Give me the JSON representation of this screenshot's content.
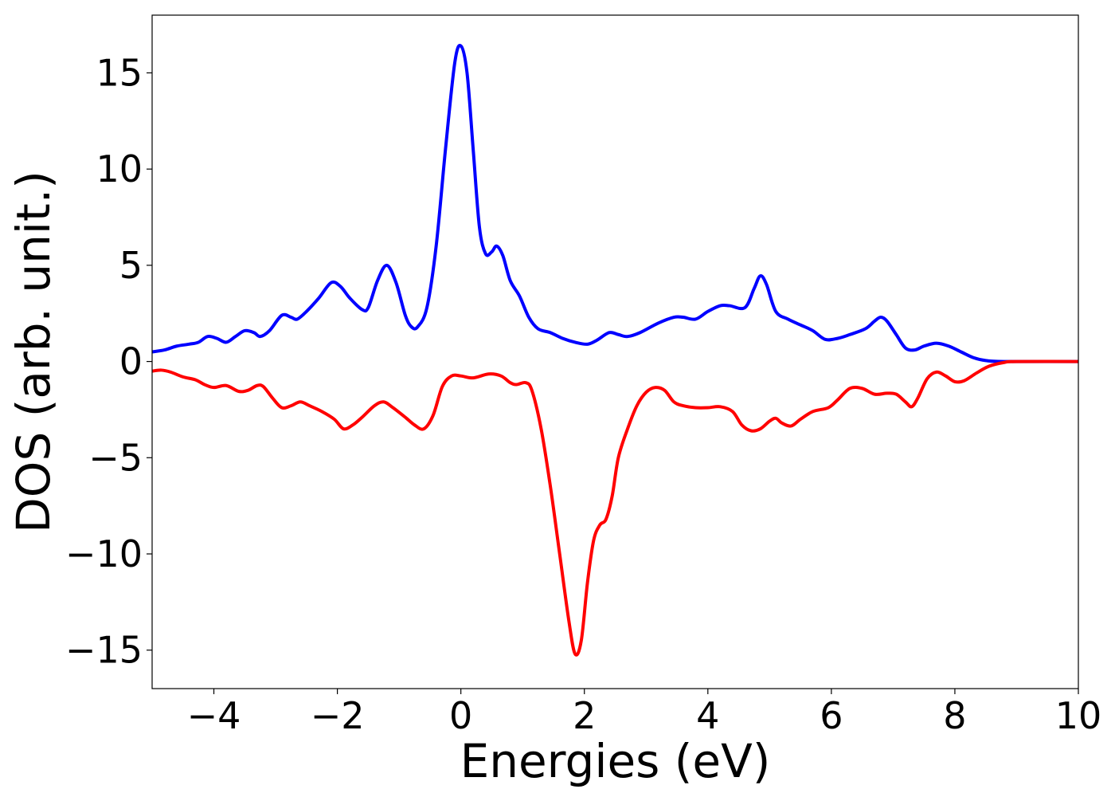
{
  "chart_data": {
    "type": "line",
    "title": "",
    "xlabel": "Energies (eV)",
    "ylabel": "DOS (arb. unit.)",
    "xlim": [
      -5,
      10
    ],
    "ylim": [
      -17,
      18
    ],
    "grid": false,
    "legend": "none",
    "x_ticks": [
      -4,
      -2,
      0,
      2,
      4,
      6,
      8,
      10
    ],
    "x_tick_labels": [
      "−4",
      "−2",
      "0",
      "2",
      "4",
      "6",
      "8",
      "10"
    ],
    "y_ticks": [
      15,
      10,
      5,
      0,
      -5,
      -10,
      -15
    ],
    "y_tick_labels": [
      "15",
      "10",
      "5",
      "0",
      "−5",
      "−10",
      "−15"
    ],
    "series": [
      {
        "color": "#0000ff",
        "points": [
          [
            -5.0,
            0.5
          ],
          [
            -4.8,
            0.6
          ],
          [
            -4.6,
            0.8
          ],
          [
            -4.4,
            0.9
          ],
          [
            -4.25,
            1.0
          ],
          [
            -4.1,
            1.3
          ],
          [
            -3.95,
            1.2
          ],
          [
            -3.8,
            1.0
          ],
          [
            -3.65,
            1.3
          ],
          [
            -3.5,
            1.6
          ],
          [
            -3.35,
            1.5
          ],
          [
            -3.25,
            1.3
          ],
          [
            -3.1,
            1.6
          ],
          [
            -2.9,
            2.4
          ],
          [
            -2.75,
            2.3
          ],
          [
            -2.65,
            2.2
          ],
          [
            -2.5,
            2.6
          ],
          [
            -2.3,
            3.3
          ],
          [
            -2.1,
            4.1
          ],
          [
            -1.95,
            3.9
          ],
          [
            -1.8,
            3.3
          ],
          [
            -1.6,
            2.7
          ],
          [
            -1.5,
            2.8
          ],
          [
            -1.35,
            4.2
          ],
          [
            -1.2,
            5.0
          ],
          [
            -1.05,
            4.1
          ],
          [
            -0.9,
            2.4
          ],
          [
            -0.8,
            1.8
          ],
          [
            -0.7,
            1.8
          ],
          [
            -0.55,
            2.8
          ],
          [
            -0.4,
            6.0
          ],
          [
            -0.25,
            11.0
          ],
          [
            -0.1,
            15.5
          ],
          [
            0.0,
            16.4
          ],
          [
            0.1,
            15.0
          ],
          [
            0.2,
            11.0
          ],
          [
            0.3,
            7.0
          ],
          [
            0.4,
            5.6
          ],
          [
            0.5,
            5.7
          ],
          [
            0.58,
            6.0
          ],
          [
            0.68,
            5.5
          ],
          [
            0.8,
            4.2
          ],
          [
            0.95,
            3.4
          ],
          [
            1.1,
            2.3
          ],
          [
            1.25,
            1.7
          ],
          [
            1.45,
            1.5
          ],
          [
            1.65,
            1.2
          ],
          [
            1.85,
            1.0
          ],
          [
            2.05,
            0.9
          ],
          [
            2.2,
            1.1
          ],
          [
            2.4,
            1.5
          ],
          [
            2.55,
            1.4
          ],
          [
            2.7,
            1.3
          ],
          [
            2.9,
            1.5
          ],
          [
            3.2,
            2.0
          ],
          [
            3.45,
            2.3
          ],
          [
            3.6,
            2.3
          ],
          [
            3.8,
            2.2
          ],
          [
            4.0,
            2.6
          ],
          [
            4.2,
            2.9
          ],
          [
            4.35,
            2.9
          ],
          [
            4.6,
            2.8
          ],
          [
            4.75,
            3.8
          ],
          [
            4.85,
            4.45
          ],
          [
            4.95,
            4.0
          ],
          [
            5.1,
            2.6
          ],
          [
            5.3,
            2.2
          ],
          [
            5.5,
            1.9
          ],
          [
            5.7,
            1.6
          ],
          [
            5.9,
            1.15
          ],
          [
            6.1,
            1.2
          ],
          [
            6.3,
            1.4
          ],
          [
            6.55,
            1.7
          ],
          [
            6.7,
            2.1
          ],
          [
            6.8,
            2.3
          ],
          [
            6.9,
            2.1
          ],
          [
            7.05,
            1.4
          ],
          [
            7.2,
            0.7
          ],
          [
            7.35,
            0.6
          ],
          [
            7.5,
            0.8
          ],
          [
            7.7,
            0.95
          ],
          [
            7.9,
            0.8
          ],
          [
            8.1,
            0.5
          ],
          [
            8.3,
            0.2
          ],
          [
            8.5,
            0.05
          ],
          [
            8.8,
            0.0
          ],
          [
            10.0,
            0.0
          ]
        ]
      },
      {
        "color": "#ff0000",
        "points": [
          [
            -5.0,
            -0.5
          ],
          [
            -4.85,
            -0.45
          ],
          [
            -4.7,
            -0.55
          ],
          [
            -4.5,
            -0.8
          ],
          [
            -4.3,
            -0.95
          ],
          [
            -4.15,
            -1.2
          ],
          [
            -4.0,
            -1.35
          ],
          [
            -3.8,
            -1.25
          ],
          [
            -3.6,
            -1.55
          ],
          [
            -3.45,
            -1.5
          ],
          [
            -3.3,
            -1.25
          ],
          [
            -3.2,
            -1.3
          ],
          [
            -3.05,
            -1.9
          ],
          [
            -2.9,
            -2.4
          ],
          [
            -2.75,
            -2.3
          ],
          [
            -2.6,
            -2.1
          ],
          [
            -2.45,
            -2.3
          ],
          [
            -2.25,
            -2.6
          ],
          [
            -2.05,
            -3.0
          ],
          [
            -1.9,
            -3.5
          ],
          [
            -1.75,
            -3.3
          ],
          [
            -1.6,
            -2.9
          ],
          [
            -1.4,
            -2.3
          ],
          [
            -1.25,
            -2.1
          ],
          [
            -1.1,
            -2.4
          ],
          [
            -0.9,
            -2.9
          ],
          [
            -0.75,
            -3.3
          ],
          [
            -0.6,
            -3.5
          ],
          [
            -0.45,
            -2.8
          ],
          [
            -0.3,
            -1.3
          ],
          [
            -0.15,
            -0.75
          ],
          [
            0.0,
            -0.75
          ],
          [
            0.2,
            -0.85
          ],
          [
            0.45,
            -0.65
          ],
          [
            0.65,
            -0.75
          ],
          [
            0.8,
            -1.1
          ],
          [
            0.9,
            -1.2
          ],
          [
            1.05,
            -1.1
          ],
          [
            1.15,
            -1.5
          ],
          [
            1.3,
            -3.5
          ],
          [
            1.45,
            -6.5
          ],
          [
            1.6,
            -10.0
          ],
          [
            1.75,
            -13.5
          ],
          [
            1.85,
            -15.2
          ],
          [
            1.95,
            -14.5
          ],
          [
            2.05,
            -11.5
          ],
          [
            2.15,
            -9.3
          ],
          [
            2.25,
            -8.5
          ],
          [
            2.35,
            -8.2
          ],
          [
            2.45,
            -7.0
          ],
          [
            2.55,
            -5.0
          ],
          [
            2.7,
            -3.5
          ],
          [
            2.85,
            -2.3
          ],
          [
            3.0,
            -1.6
          ],
          [
            3.15,
            -1.35
          ],
          [
            3.3,
            -1.5
          ],
          [
            3.45,
            -2.1
          ],
          [
            3.6,
            -2.3
          ],
          [
            3.8,
            -2.4
          ],
          [
            4.0,
            -2.4
          ],
          [
            4.2,
            -2.35
          ],
          [
            4.4,
            -2.6
          ],
          [
            4.55,
            -3.3
          ],
          [
            4.7,
            -3.6
          ],
          [
            4.85,
            -3.5
          ],
          [
            5.0,
            -3.1
          ],
          [
            5.1,
            -2.95
          ],
          [
            5.2,
            -3.2
          ],
          [
            5.35,
            -3.35
          ],
          [
            5.5,
            -3.0
          ],
          [
            5.7,
            -2.6
          ],
          [
            5.95,
            -2.4
          ],
          [
            6.1,
            -2.0
          ],
          [
            6.3,
            -1.4
          ],
          [
            6.5,
            -1.4
          ],
          [
            6.7,
            -1.7
          ],
          [
            6.9,
            -1.65
          ],
          [
            7.05,
            -1.7
          ],
          [
            7.2,
            -2.1
          ],
          [
            7.3,
            -2.35
          ],
          [
            7.4,
            -1.9
          ],
          [
            7.55,
            -0.9
          ],
          [
            7.7,
            -0.55
          ],
          [
            7.85,
            -0.75
          ],
          [
            8.0,
            -1.05
          ],
          [
            8.15,
            -1.0
          ],
          [
            8.35,
            -0.6
          ],
          [
            8.55,
            -0.25
          ],
          [
            8.8,
            -0.05
          ],
          [
            9.0,
            0.0
          ],
          [
            10.0,
            0.0
          ]
        ]
      }
    ]
  }
}
